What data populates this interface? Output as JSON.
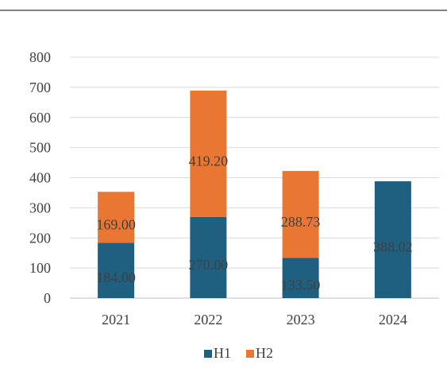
{
  "chart_data": {
    "type": "bar",
    "stacked": true,
    "categories": [
      "2021",
      "2022",
      "2023",
      "2024"
    ],
    "series": [
      {
        "name": "H1",
        "color": "#1f5f7f",
        "values": [
          184.0,
          270.0,
          133.5,
          388.02
        ],
        "labels": [
          "184.00",
          "270.00",
          "133.50",
          "388.02"
        ]
      },
      {
        "name": "H2",
        "color": "#e97633",
        "values": [
          169.0,
          419.2,
          288.73,
          null
        ],
        "labels": [
          "169.00",
          "419.20",
          "288.73",
          ""
        ]
      }
    ],
    "y_ticks": [
      "0",
      "100",
      "200",
      "300",
      "400",
      "500",
      "600",
      "700",
      "800"
    ],
    "ylim": [
      0,
      800
    ],
    "grid": true,
    "legend_position": "bottom"
  }
}
